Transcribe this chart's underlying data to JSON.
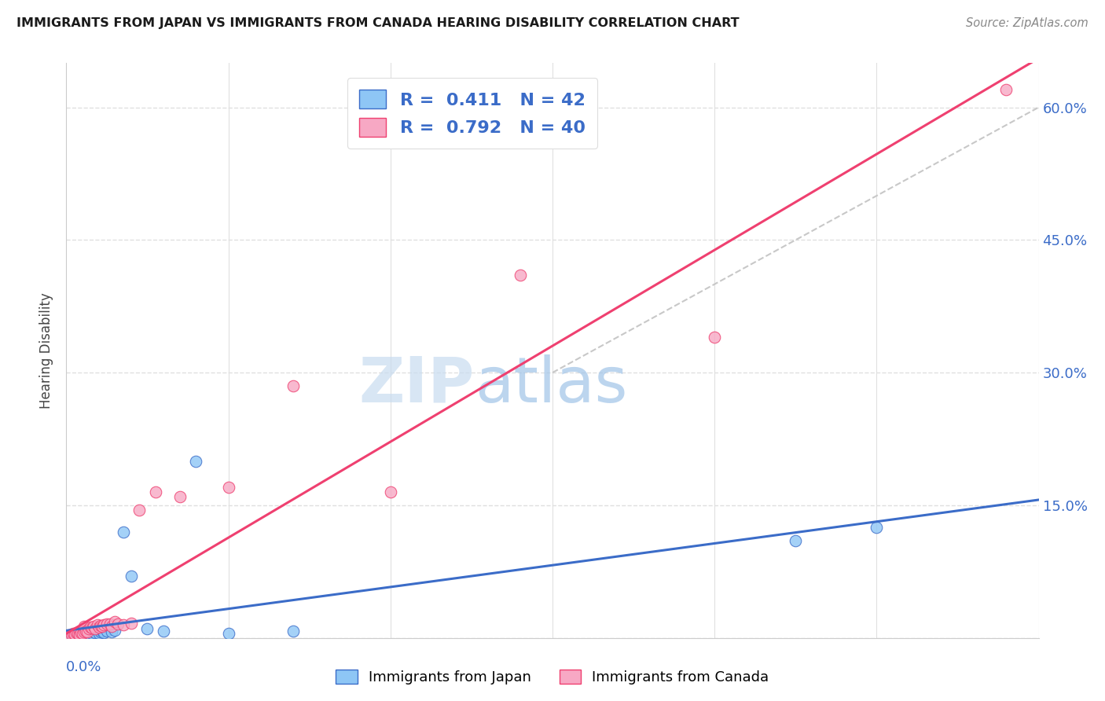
{
  "title": "IMMIGRANTS FROM JAPAN VS IMMIGRANTS FROM CANADA HEARING DISABILITY CORRELATION CHART",
  "source": "Source: ZipAtlas.com",
  "ylabel": "Hearing Disability",
  "ytick_values": [
    0.0,
    0.15,
    0.3,
    0.45,
    0.6
  ],
  "xlim": [
    0.0,
    0.6
  ],
  "ylim": [
    0.0,
    0.65
  ],
  "legend_japan_R": "0.411",
  "legend_japan_N": "42",
  "legend_canada_R": "0.792",
  "legend_canada_N": "40",
  "color_japan": "#8EC6F5",
  "color_canada": "#F7A8C4",
  "color_japan_line": "#3B6CC8",
  "color_canada_line": "#EF4070",
  "color_dashed": "#C8C8C8",
  "watermark_zip": "ZIP",
  "watermark_atlas": "atlas",
  "japan_scatter_x": [
    0.002,
    0.003,
    0.004,
    0.005,
    0.005,
    0.006,
    0.007,
    0.007,
    0.008,
    0.008,
    0.009,
    0.009,
    0.01,
    0.01,
    0.011,
    0.011,
    0.012,
    0.012,
    0.013,
    0.013,
    0.014,
    0.015,
    0.015,
    0.016,
    0.017,
    0.018,
    0.02,
    0.021,
    0.022,
    0.023,
    0.025,
    0.028,
    0.03,
    0.035,
    0.04,
    0.05,
    0.06,
    0.08,
    0.1,
    0.14,
    0.45,
    0.5
  ],
  "japan_scatter_y": [
    0.002,
    0.003,
    0.002,
    0.004,
    0.003,
    0.003,
    0.004,
    0.002,
    0.005,
    0.003,
    0.004,
    0.006,
    0.004,
    0.003,
    0.005,
    0.004,
    0.005,
    0.003,
    0.006,
    0.004,
    0.004,
    0.006,
    0.003,
    0.005,
    0.007,
    0.006,
    0.005,
    0.007,
    0.008,
    0.006,
    0.008,
    0.007,
    0.009,
    0.12,
    0.07,
    0.01,
    0.008,
    0.2,
    0.005,
    0.008,
    0.11,
    0.125
  ],
  "canada_scatter_x": [
    0.002,
    0.003,
    0.004,
    0.005,
    0.006,
    0.007,
    0.008,
    0.008,
    0.009,
    0.01,
    0.011,
    0.011,
    0.012,
    0.013,
    0.014,
    0.015,
    0.016,
    0.017,
    0.018,
    0.019,
    0.02,
    0.021,
    0.022,
    0.023,
    0.025,
    0.027,
    0.028,
    0.03,
    0.032,
    0.035,
    0.04,
    0.045,
    0.055,
    0.07,
    0.1,
    0.14,
    0.2,
    0.28,
    0.4,
    0.58
  ],
  "canada_scatter_y": [
    0.003,
    0.004,
    0.005,
    0.004,
    0.006,
    0.005,
    0.007,
    0.003,
    0.006,
    0.005,
    0.007,
    0.013,
    0.008,
    0.007,
    0.01,
    0.012,
    0.011,
    0.013,
    0.01,
    0.015,
    0.012,
    0.014,
    0.013,
    0.015,
    0.016,
    0.016,
    0.013,
    0.018,
    0.016,
    0.015,
    0.017,
    0.145,
    0.165,
    0.16,
    0.17,
    0.285,
    0.165,
    0.41,
    0.34,
    0.62
  ],
  "background_color": "#FFFFFF",
  "grid_color": "#E0E0E0"
}
